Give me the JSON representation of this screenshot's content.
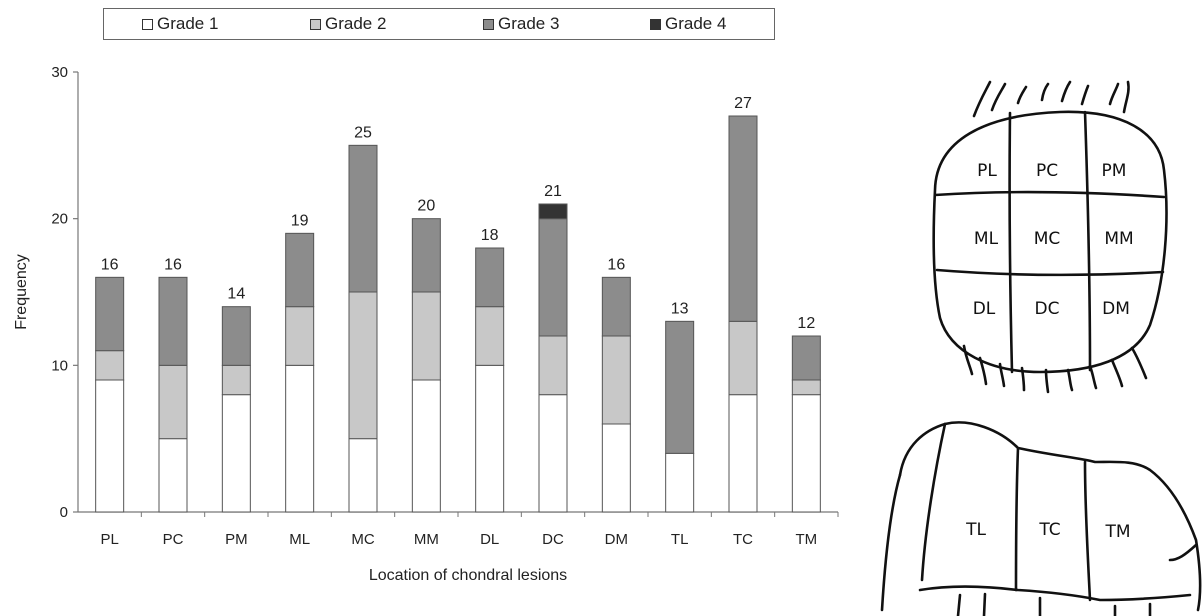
{
  "chart_data": {
    "type": "bar",
    "stacked": true,
    "categories": [
      "PL",
      "PC",
      "PM",
      "ML",
      "MC",
      "MM",
      "DL",
      "DC",
      "DM",
      "TL",
      "TC",
      "TM"
    ],
    "series": [
      {
        "name": "Grade 1",
        "color": "#ffffff",
        "values": [
          9,
          5,
          8,
          10,
          5,
          9,
          10,
          8,
          6,
          4,
          8,
          8
        ]
      },
      {
        "name": "Grade 2",
        "color": "#c8c8c8",
        "values": [
          2,
          5,
          2,
          4,
          10,
          6,
          4,
          4,
          6,
          0,
          5,
          1
        ]
      },
      {
        "name": "Grade 3",
        "color": "#8c8c8c",
        "values": [
          5,
          6,
          4,
          5,
          10,
          5,
          4,
          8,
          4,
          9,
          14,
          3
        ]
      },
      {
        "name": "Grade 4",
        "color": "#333333",
        "values": [
          0,
          0,
          0,
          0,
          0,
          0,
          0,
          1,
          0,
          0,
          0,
          0
        ]
      }
    ],
    "totals": [
      16,
      16,
      14,
      19,
      25,
      20,
      18,
      21,
      16,
      13,
      27,
      12
    ],
    "xlabel": "Location of chondral lesions",
    "ylabel": "Frequency",
    "ylim": [
      0,
      30
    ],
    "yticks": [
      0,
      10,
      20,
      30
    ],
    "grid": false,
    "legend_position": "top"
  },
  "diagram": {
    "upper_labels": [
      "PL",
      "PC",
      "PM",
      "ML",
      "MC",
      "MM",
      "DL",
      "DC",
      "DM"
    ],
    "lower_labels": [
      "TL",
      "TC",
      "TM"
    ]
  }
}
